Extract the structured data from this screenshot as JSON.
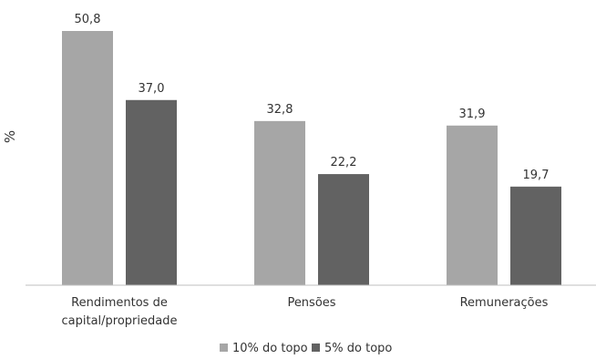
{
  "chart_data": {
    "type": "bar",
    "categories": [
      "Rendimentos de capital/propriedade",
      "Pensões",
      "Remunerações"
    ],
    "category_lines": [
      [
        "Rendimentos de",
        "capital/propriedade"
      ],
      [
        "Pensões"
      ],
      [
        "Remunerações"
      ]
    ],
    "series": [
      {
        "name": "10% do topo",
        "values": [
          50.8,
          32.8,
          31.9
        ],
        "labels": [
          "50,8",
          "32,8",
          "31,9"
        ],
        "color": "#a6a6a6"
      },
      {
        "name": "5% do topo",
        "values": [
          37.0,
          22.2,
          19.7
        ],
        "labels": [
          "37,0",
          "22,2",
          "19,7"
        ],
        "color": "#626262"
      }
    ],
    "title": "",
    "xlabel": "",
    "ylabel": "%",
    "ylim": [
      0,
      50.8
    ],
    "grid": false,
    "legend_position": "bottom"
  }
}
